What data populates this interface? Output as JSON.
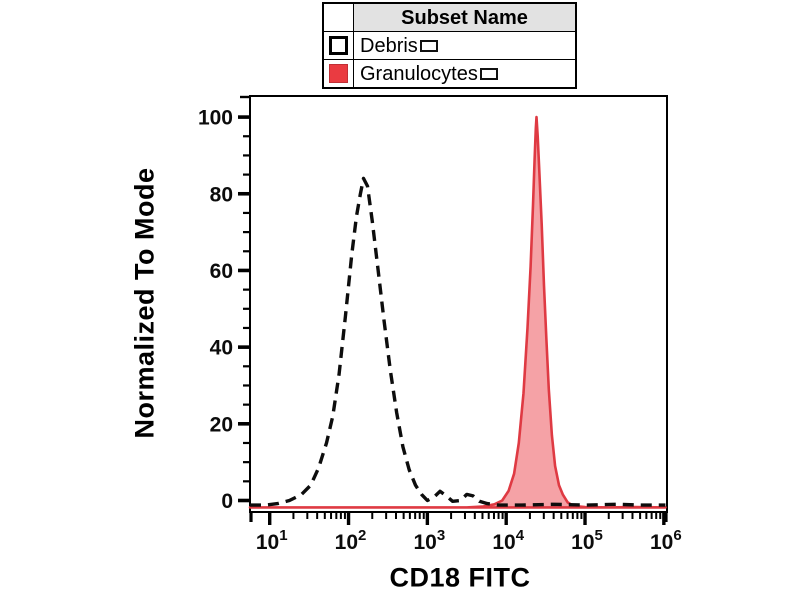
{
  "figure": {
    "xlabel": "CD18 FITC",
    "ylabel": "Normalized To Mode"
  },
  "legend": {
    "header": "Subset Name",
    "rows": [
      {
        "label": "Debris",
        "swatch": "open-black-square",
        "swatch_color": "#ffffff"
      },
      {
        "label": "Granulocytes",
        "swatch": "filled-red-square",
        "swatch_color": "#ea3b41"
      }
    ]
  },
  "chart_data": {
    "type": "line",
    "subtype": "flow-cytometry-histogram",
    "title": "",
    "xlabel": "CD18 FITC",
    "ylabel": "Normalized To Mode",
    "x_scale": "log10",
    "xlim_log10": [
      0.75,
      6.04
    ],
    "ylim": [
      -3,
      105.5
    ],
    "x_tick_exponents": [
      1,
      2,
      3,
      4,
      5,
      6
    ],
    "x_tick_labels": [
      "10^1",
      "10^2",
      "10^3",
      "10^4",
      "10^5",
      "10^6"
    ],
    "y_ticks": [
      0,
      20,
      40,
      60,
      80,
      100
    ],
    "y_minor_step": 5,
    "grid": false,
    "legend_position": "top-center",
    "series": [
      {
        "name": "Debris",
        "line_style": "dashed",
        "color": "#0d0d0d",
        "filled": false,
        "peak": {
          "x": 155,
          "y": 84
        },
        "points_log10x_y": [
          [
            0.75,
            -1.2
          ],
          [
            0.95,
            -1.2
          ],
          [
            1.1,
            -0.8
          ],
          [
            1.25,
            0
          ],
          [
            1.4,
            1.5
          ],
          [
            1.52,
            4
          ],
          [
            1.62,
            8.5
          ],
          [
            1.72,
            15
          ],
          [
            1.8,
            22
          ],
          [
            1.88,
            33
          ],
          [
            1.96,
            48
          ],
          [
            2.04,
            64
          ],
          [
            2.1,
            74
          ],
          [
            2.15,
            80
          ],
          [
            2.19,
            84
          ],
          [
            2.24,
            82
          ],
          [
            2.3,
            73
          ],
          [
            2.37,
            61
          ],
          [
            2.45,
            47
          ],
          [
            2.53,
            34
          ],
          [
            2.61,
            23
          ],
          [
            2.69,
            14
          ],
          [
            2.77,
            8
          ],
          [
            2.85,
            4
          ],
          [
            2.93,
            1.5
          ],
          [
            3.0,
            0
          ],
          [
            3.08,
            0.8
          ],
          [
            3.16,
            2.4
          ],
          [
            3.24,
            1.2
          ],
          [
            3.32,
            -0.2
          ],
          [
            3.42,
            0
          ],
          [
            3.5,
            1.6
          ],
          [
            3.58,
            1.2
          ],
          [
            3.66,
            -0.2
          ],
          [
            3.76,
            -0.8
          ],
          [
            3.9,
            -1.2
          ],
          [
            4.2,
            -1.2
          ],
          [
            4.6,
            -1
          ],
          [
            5.0,
            -1.2
          ],
          [
            5.4,
            -1
          ],
          [
            5.7,
            -1.2
          ],
          [
            6.02,
            -1.2
          ]
        ]
      },
      {
        "name": "Granulocytes",
        "line_style": "solid",
        "color": "#df3a43",
        "filled": true,
        "fill_color": "rgba(237,85,92,0.55)",
        "peak": {
          "x": 24000,
          "y": 100
        },
        "points_log10x_y": [
          [
            0.75,
            -1.8
          ],
          [
            2.0,
            -1.8
          ],
          [
            3.0,
            -1.8
          ],
          [
            3.5,
            -1.8
          ],
          [
            3.7,
            -1.6
          ],
          [
            3.85,
            -1
          ],
          [
            3.95,
            0
          ],
          [
            4.03,
            2.5
          ],
          [
            4.1,
            7
          ],
          [
            4.16,
            15
          ],
          [
            4.22,
            28
          ],
          [
            4.27,
            45
          ],
          [
            4.31,
            61
          ],
          [
            4.34,
            77
          ],
          [
            4.36,
            89
          ],
          [
            4.375,
            97
          ],
          [
            4.385,
            100
          ],
          [
            4.4,
            95
          ],
          [
            4.42,
            86
          ],
          [
            4.45,
            72
          ],
          [
            4.48,
            56
          ],
          [
            4.51,
            42
          ],
          [
            4.54,
            29
          ],
          [
            4.58,
            17
          ],
          [
            4.62,
            9
          ],
          [
            4.67,
            4
          ],
          [
            4.72,
            1.5
          ],
          [
            4.78,
            -0.5
          ],
          [
            4.85,
            -1.4
          ],
          [
            5.0,
            -1.7
          ],
          [
            5.3,
            -1.8
          ],
          [
            5.6,
            -1.7
          ],
          [
            6.02,
            -1.8
          ]
        ]
      }
    ]
  }
}
